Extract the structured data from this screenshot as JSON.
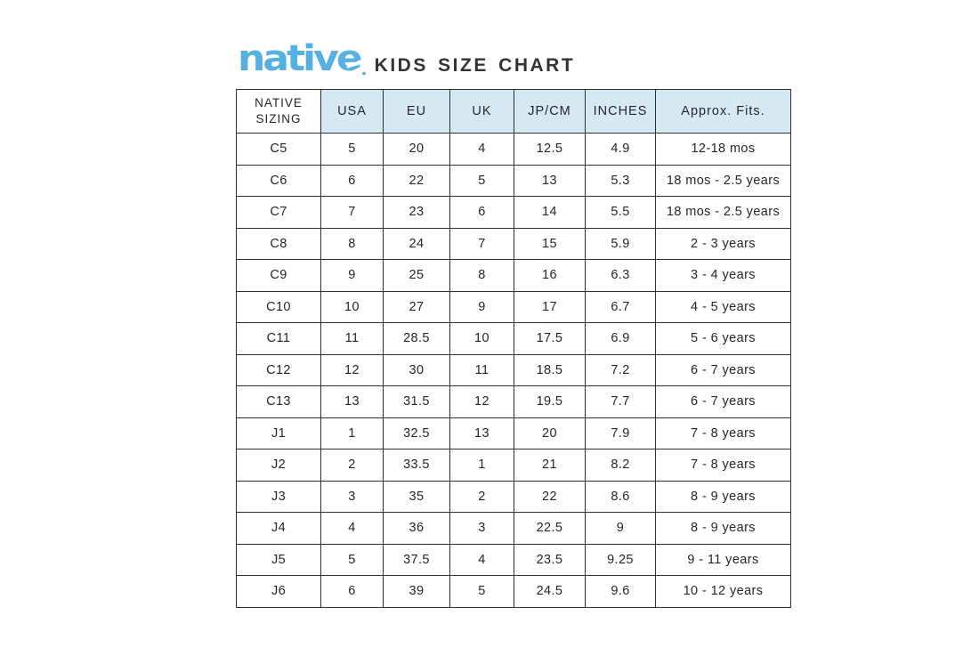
{
  "brand": {
    "logo_text": "native",
    "logo_color": "#56b1e3"
  },
  "header": {
    "title": "KIDS SIZE CHART"
  },
  "colors": {
    "header_cell_bg": "#d6e9f2",
    "table_border": "#2e2e2e",
    "text": "#262626"
  },
  "chart_data": {
    "type": "table",
    "title": "KIDS SIZE CHART",
    "columns": [
      "NATIVE SIZING",
      "USA",
      "EU",
      "UK",
      "JP/CM",
      "INCHES",
      "Approx. Fits."
    ],
    "rows": [
      [
        "C5",
        "5",
        "20",
        "4",
        "12.5",
        "4.9",
        "12-18 mos"
      ],
      [
        "C6",
        "6",
        "22",
        "5",
        "13",
        "5.3",
        "18 mos - 2.5 years"
      ],
      [
        "C7",
        "7",
        "23",
        "6",
        "14",
        "5.5",
        "18 mos - 2.5 years"
      ],
      [
        "C8",
        "8",
        "24",
        "7",
        "15",
        "5.9",
        "2 - 3 years"
      ],
      [
        "C9",
        "9",
        "25",
        "8",
        "16",
        "6.3",
        "3 - 4 years"
      ],
      [
        "C10",
        "10",
        "27",
        "9",
        "17",
        "6.7",
        "4 - 5 years"
      ],
      [
        "C11",
        "11",
        "28.5",
        "10",
        "17.5",
        "6.9",
        "5 - 6 years"
      ],
      [
        "C12",
        "12",
        "30",
        "11",
        "18.5",
        "7.2",
        "6 - 7 years"
      ],
      [
        "C13",
        "13",
        "31.5",
        "12",
        "19.5",
        "7.7",
        "6 - 7 years"
      ],
      [
        "J1",
        "1",
        "32.5",
        "13",
        "20",
        "7.9",
        "7 - 8 years"
      ],
      [
        "J2",
        "2",
        "33.5",
        "1",
        "21",
        "8.2",
        "7 - 8 years"
      ],
      [
        "J3",
        "3",
        "35",
        "2",
        "22",
        "8.6",
        "8 - 9 years"
      ],
      [
        "J4",
        "4",
        "36",
        "3",
        "22.5",
        "9",
        "8 - 9 years"
      ],
      [
        "J5",
        "5",
        "37.5",
        "4",
        "23.5",
        "9.25",
        "9 - 11 years"
      ],
      [
        "J6",
        "6",
        "39",
        "5",
        "24.5",
        "9.6",
        "10 - 12 years"
      ]
    ]
  }
}
